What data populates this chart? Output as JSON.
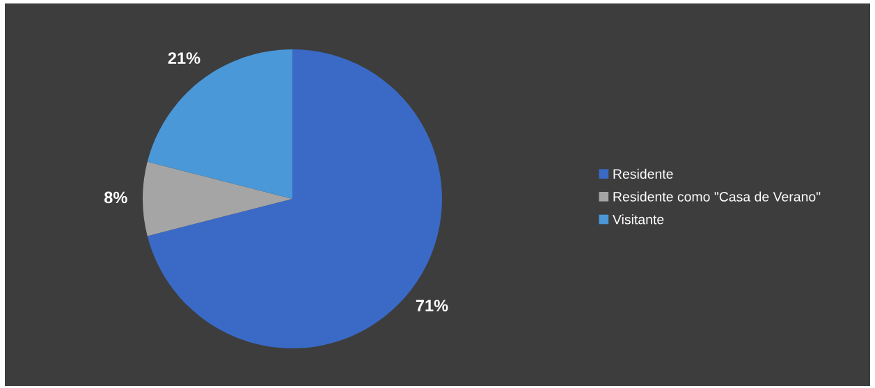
{
  "chart_data": {
    "type": "pie",
    "categories": [
      "Residente",
      "Residente como \"Casa de Verano\"",
      "Visitante"
    ],
    "values": [
      71,
      8,
      21
    ],
    "value_labels": [
      "71%",
      "8%",
      "21%"
    ],
    "colors": [
      "#3a6ac6",
      "#a5a5a5",
      "#4a98d8"
    ],
    "legend": "right"
  }
}
